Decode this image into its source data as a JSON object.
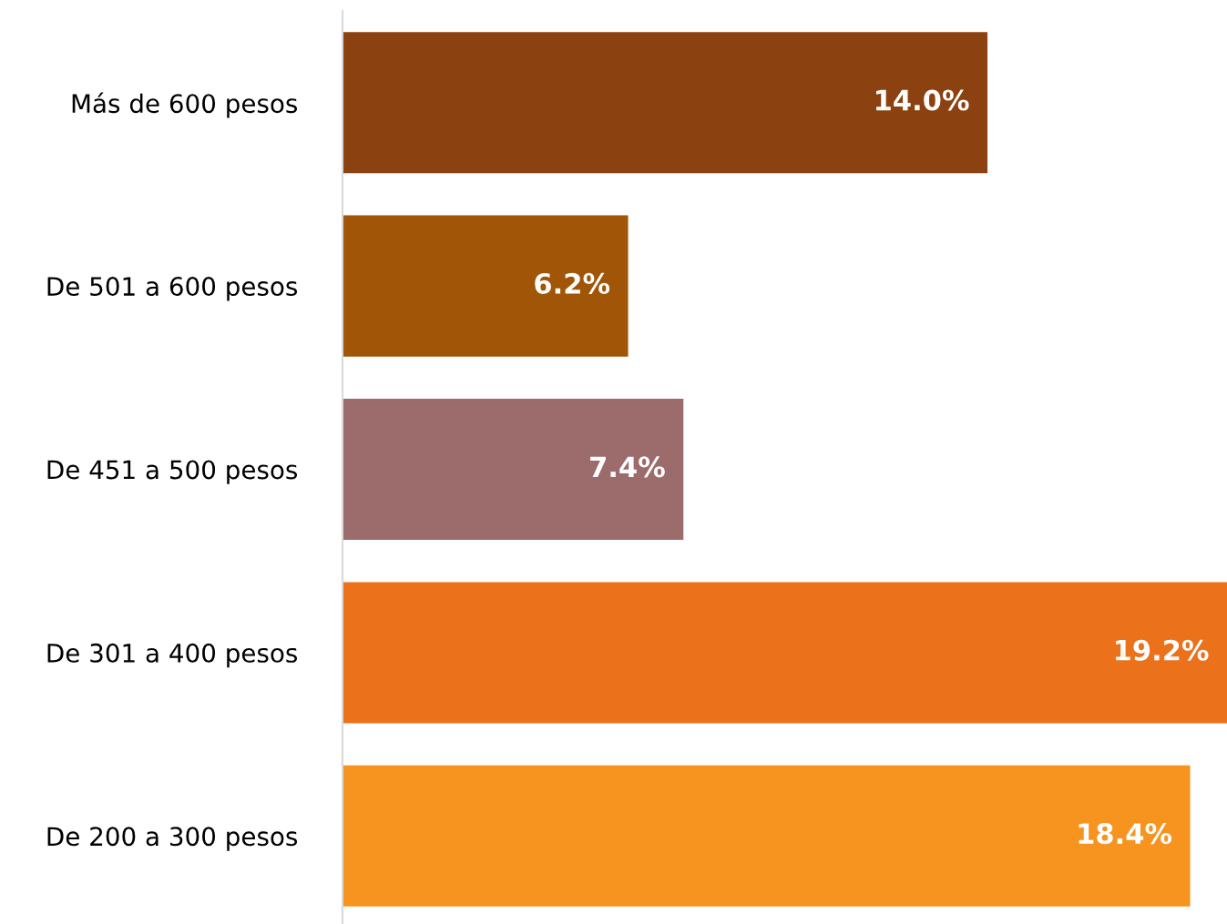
{
  "chart_data": {
    "type": "bar",
    "orientation": "horizontal",
    "categories": [
      "Más de 600 pesos",
      "De 501 a 600 pesos",
      "De 451 a 500 pesos",
      "De 301 a 400 pesos",
      "De 200 a 300 pesos"
    ],
    "values": [
      14.0,
      6.2,
      7.4,
      19.2,
      18.4
    ],
    "value_labels": [
      "14.0%",
      "6.2%",
      "7.4%",
      "19.2%",
      "18.4%"
    ],
    "colors": [
      "#8b4210",
      "#a05606",
      "#9c6b6b",
      "#eb711a",
      "#f79420"
    ],
    "tick_labels": "y",
    "grid": false,
    "legend": false
  }
}
